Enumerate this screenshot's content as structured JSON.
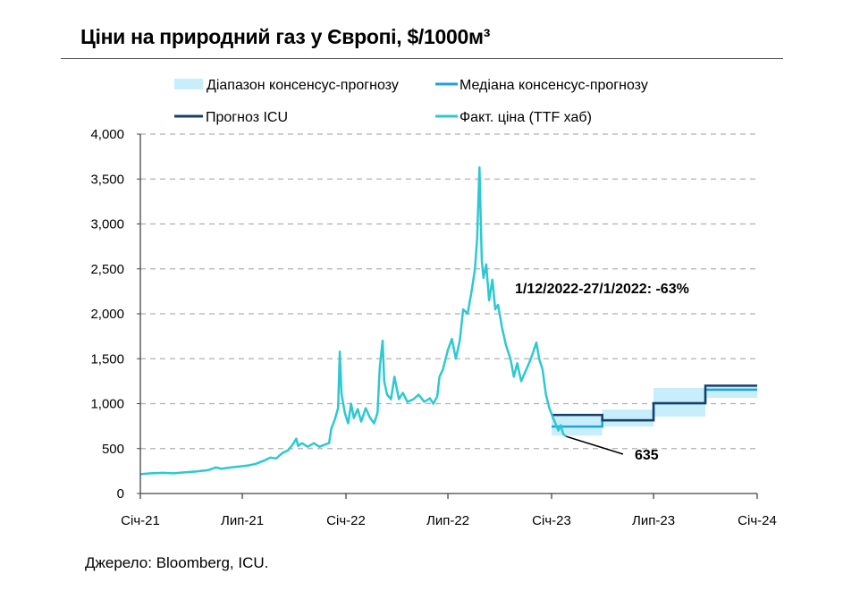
{
  "title": "Ціни на природний газ у Європі, $/1000м³",
  "source": "Джерело: Bloomberg, ICU.",
  "colors": {
    "range": "#c9eefb",
    "median": "#1fa3dc",
    "icu": "#173f6b",
    "actual": "#2ec8d3",
    "grid": "#b0b0b0"
  },
  "chart_data": {
    "type": "line",
    "title": "Ціни на природний газ у Європі, $/1000м³",
    "xlabel": "",
    "ylabel": "",
    "ylim": [
      0,
      4000
    ],
    "xlim": [
      "2021-01-01",
      "2024-01-01"
    ],
    "yticks": [
      "0",
      "500",
      "1,000",
      "1,500",
      "2,000",
      "2,500",
      "3,000",
      "3,500",
      "4,000"
    ],
    "xticks": [
      {
        "label": "Січ-21",
        "date": "2021-01-01"
      },
      {
        "label": "Лип-21",
        "date": "2021-07-01"
      },
      {
        "label": "Січ-22",
        "date": "2022-01-01"
      },
      {
        "label": "Лип-22",
        "date": "2022-07-01"
      },
      {
        "label": "Січ-23",
        "date": "2023-01-01"
      },
      {
        "label": "Лип-23",
        "date": "2023-07-01"
      },
      {
        "label": "Січ-24",
        "date": "2024-01-01"
      }
    ],
    "grid": true,
    "legend_position": "top",
    "legend": [
      {
        "name": "Діапазон консенсус-прогнозу",
        "kind": "range"
      },
      {
        "name": "Медіана консенсус-прогнозу",
        "kind": "median"
      },
      {
        "name": "Прогноз ICU",
        "kind": "icu"
      },
      {
        "name": "Факт. ціна (TTF хаб)",
        "kind": "actual"
      }
    ],
    "forecast_periods": [
      {
        "start": "2023-01-01",
        "end": "2023-04-01",
        "range_low": 645,
        "range_high": 885,
        "median": 745,
        "icu": 875
      },
      {
        "start": "2023-04-01",
        "end": "2023-07-01",
        "range_low": 745,
        "range_high": 935,
        "median": 815,
        "icu": 815
      },
      {
        "start": "2023-07-01",
        "end": "2023-10-01",
        "range_low": 855,
        "range_high": 1175,
        "median": 1005,
        "icu": 1005
      },
      {
        "start": "2023-10-01",
        "end": "2024-01-01",
        "range_low": 1065,
        "range_high": 1205,
        "median": 1155,
        "icu": 1200
      }
    ],
    "series": [
      {
        "name": "Факт. ціна (TTF хаб)",
        "points": [
          [
            "2021-01-01",
            215
          ],
          [
            "2021-01-20",
            225
          ],
          [
            "2021-02-10",
            230
          ],
          [
            "2021-03-01",
            225
          ],
          [
            "2021-03-20",
            235
          ],
          [
            "2021-04-10",
            245
          ],
          [
            "2021-05-01",
            260
          ],
          [
            "2021-05-15",
            290
          ],
          [
            "2021-05-25",
            275
          ],
          [
            "2021-06-10",
            290
          ],
          [
            "2021-06-25",
            300
          ],
          [
            "2021-07-10",
            310
          ],
          [
            "2021-07-25",
            330
          ],
          [
            "2021-08-10",
            370
          ],
          [
            "2021-08-20",
            400
          ],
          [
            "2021-08-30",
            390
          ],
          [
            "2021-09-10",
            450
          ],
          [
            "2021-09-20",
            480
          ],
          [
            "2021-09-28",
            540
          ],
          [
            "2021-10-05",
            610
          ],
          [
            "2021-10-08",
            530
          ],
          [
            "2021-10-15",
            560
          ],
          [
            "2021-10-25",
            520
          ],
          [
            "2021-11-05",
            560
          ],
          [
            "2021-11-15",
            520
          ],
          [
            "2021-11-25",
            545
          ],
          [
            "2021-12-02",
            560
          ],
          [
            "2021-12-06",
            720
          ],
          [
            "2021-12-12",
            820
          ],
          [
            "2021-12-18",
            950
          ],
          [
            "2021-12-21",
            1580
          ],
          [
            "2021-12-24",
            1110
          ],
          [
            "2021-12-30",
            900
          ],
          [
            "2022-01-05",
            780
          ],
          [
            "2022-01-10",
            1000
          ],
          [
            "2022-01-15",
            840
          ],
          [
            "2022-01-22",
            940
          ],
          [
            "2022-01-28",
            800
          ],
          [
            "2022-02-05",
            950
          ],
          [
            "2022-02-12",
            850
          ],
          [
            "2022-02-20",
            780
          ],
          [
            "2022-02-26",
            900
          ],
          [
            "2022-03-02",
            1400
          ],
          [
            "2022-03-07",
            1700
          ],
          [
            "2022-03-10",
            1250
          ],
          [
            "2022-03-15",
            1100
          ],
          [
            "2022-03-22",
            1050
          ],
          [
            "2022-03-28",
            1300
          ],
          [
            "2022-04-05",
            1050
          ],
          [
            "2022-04-12",
            1120
          ],
          [
            "2022-04-20",
            1020
          ],
          [
            "2022-05-01",
            1050
          ],
          [
            "2022-05-10",
            1100
          ],
          [
            "2022-05-20",
            1020
          ],
          [
            "2022-05-30",
            1060
          ],
          [
            "2022-06-05",
            1000
          ],
          [
            "2022-06-12",
            1080
          ],
          [
            "2022-06-16",
            1300
          ],
          [
            "2022-06-22",
            1380
          ],
          [
            "2022-07-01",
            1600
          ],
          [
            "2022-07-08",
            1720
          ],
          [
            "2022-07-15",
            1500
          ],
          [
            "2022-07-22",
            1700
          ],
          [
            "2022-07-28",
            2050
          ],
          [
            "2022-08-05",
            2000
          ],
          [
            "2022-08-12",
            2250
          ],
          [
            "2022-08-18",
            2500
          ],
          [
            "2022-08-22",
            2850
          ],
          [
            "2022-08-26",
            3630
          ],
          [
            "2022-08-30",
            2600
          ],
          [
            "2022-09-02",
            2400
          ],
          [
            "2022-09-07",
            2550
          ],
          [
            "2022-09-12",
            2150
          ],
          [
            "2022-09-18",
            2380
          ],
          [
            "2022-09-23",
            2050
          ],
          [
            "2022-09-28",
            2100
          ],
          [
            "2022-10-05",
            1850
          ],
          [
            "2022-10-12",
            1650
          ],
          [
            "2022-10-20",
            1500
          ],
          [
            "2022-10-26",
            1300
          ],
          [
            "2022-11-01",
            1450
          ],
          [
            "2022-11-08",
            1250
          ],
          [
            "2022-11-15",
            1350
          ],
          [
            "2022-11-22",
            1450
          ],
          [
            "2022-11-28",
            1550
          ],
          [
            "2022-12-05",
            1680
          ],
          [
            "2022-12-10",
            1500
          ],
          [
            "2022-12-16",
            1380
          ],
          [
            "2022-12-22",
            1100
          ],
          [
            "2022-12-28",
            950
          ],
          [
            "2023-01-03",
            850
          ],
          [
            "2023-01-08",
            780
          ],
          [
            "2023-01-13",
            700
          ],
          [
            "2023-01-17",
            760
          ],
          [
            "2023-01-22",
            660
          ],
          [
            "2023-01-27",
            635
          ]
        ]
      }
    ],
    "annotations": [
      {
        "text": "1/12/2022-27/1/2022: -63%"
      },
      {
        "text": "635",
        "date": "2023-01-27",
        "value": 635
      }
    ]
  }
}
